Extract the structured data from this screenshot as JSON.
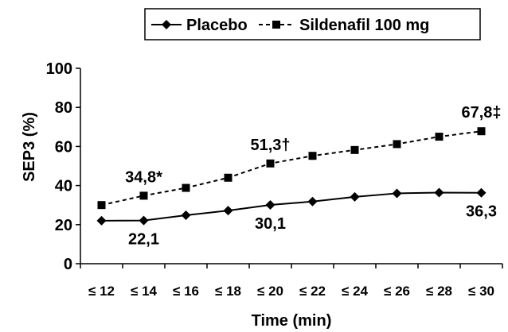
{
  "chart_data": {
    "type": "line",
    "xlabel": "Time (min)",
    "ylabel": "SEP3 (%)",
    "categories": [
      "≤ 12",
      "≤ 14",
      "≤ 16",
      "≤ 18",
      "≤ 20",
      "≤ 22",
      "≤ 24",
      "≤ 26",
      "≤ 28",
      "≤ 30"
    ],
    "ylim": [
      0,
      100
    ],
    "yticks": [
      "0",
      "20",
      "40",
      "60",
      "80",
      "100"
    ],
    "grid": false,
    "legend_position": "top-right",
    "series": [
      {
        "name": "Placebo",
        "style": "solid",
        "marker": "diamond",
        "color": "#000000",
        "values": [
          22.0,
          22.1,
          24.8,
          27.2,
          30.1,
          31.8,
          34.2,
          36.0,
          36.4,
          36.3
        ]
      },
      {
        "name": "Sildenafil 100 mg",
        "style": "dashed",
        "marker": "square",
        "color": "#000000",
        "values": [
          30.0,
          34.8,
          38.8,
          44.0,
          51.3,
          55.2,
          58.2,
          61.2,
          65.0,
          67.8
        ]
      }
    ],
    "annotations": [
      {
        "text": "34,8*",
        "series": 1,
        "index": 1
      },
      {
        "text": "51,3†",
        "series": 1,
        "index": 4
      },
      {
        "text": "67,8‡",
        "series": 1,
        "index": 9
      },
      {
        "text": "22,1",
        "series": 0,
        "index": 1
      },
      {
        "text": "30,1",
        "series": 0,
        "index": 4
      },
      {
        "text": "36,3",
        "series": 0,
        "index": 9
      }
    ]
  }
}
